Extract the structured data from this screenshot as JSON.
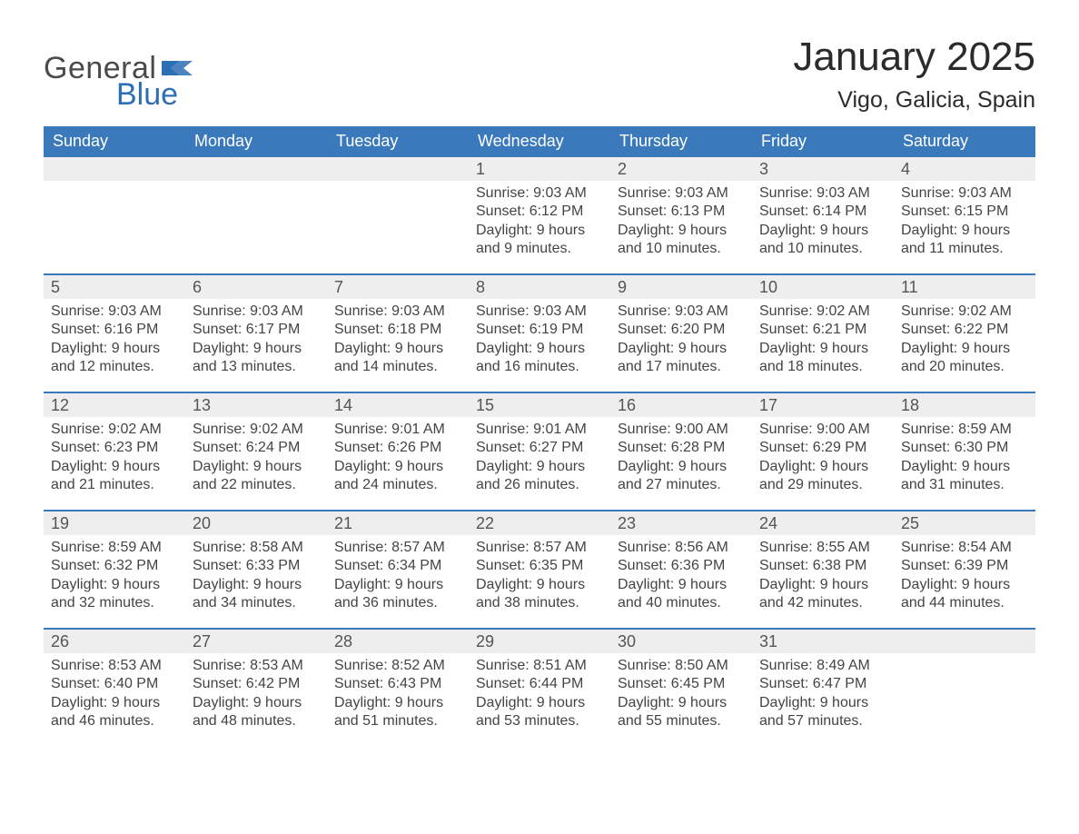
{
  "logo": {
    "general": "General",
    "blue": "Blue",
    "flag_color": "#2d6fb5",
    "text_gray": "#4a4a4a"
  },
  "title": {
    "month": "January 2025",
    "location": "Vigo, Galicia, Spain"
  },
  "colors": {
    "header_bg": "#3a79bb",
    "header_text": "#ffffff",
    "daynum_bg": "#eeeeee",
    "week_border": "#3a79bb",
    "body_text": "#444444",
    "page_bg": "#ffffff"
  },
  "calendar": {
    "columns": [
      "Sunday",
      "Monday",
      "Tuesday",
      "Wednesday",
      "Thursday",
      "Friday",
      "Saturday"
    ],
    "weeks": [
      [
        null,
        null,
        null,
        {
          "day": "1",
          "sunrise": "Sunrise: 9:03 AM",
          "sunset": "Sunset: 6:12 PM",
          "daylight1": "Daylight: 9 hours",
          "daylight2": "and 9 minutes."
        },
        {
          "day": "2",
          "sunrise": "Sunrise: 9:03 AM",
          "sunset": "Sunset: 6:13 PM",
          "daylight1": "Daylight: 9 hours",
          "daylight2": "and 10 minutes."
        },
        {
          "day": "3",
          "sunrise": "Sunrise: 9:03 AM",
          "sunset": "Sunset: 6:14 PM",
          "daylight1": "Daylight: 9 hours",
          "daylight2": "and 10 minutes."
        },
        {
          "day": "4",
          "sunrise": "Sunrise: 9:03 AM",
          "sunset": "Sunset: 6:15 PM",
          "daylight1": "Daylight: 9 hours",
          "daylight2": "and 11 minutes."
        }
      ],
      [
        {
          "day": "5",
          "sunrise": "Sunrise: 9:03 AM",
          "sunset": "Sunset: 6:16 PM",
          "daylight1": "Daylight: 9 hours",
          "daylight2": "and 12 minutes."
        },
        {
          "day": "6",
          "sunrise": "Sunrise: 9:03 AM",
          "sunset": "Sunset: 6:17 PM",
          "daylight1": "Daylight: 9 hours",
          "daylight2": "and 13 minutes."
        },
        {
          "day": "7",
          "sunrise": "Sunrise: 9:03 AM",
          "sunset": "Sunset: 6:18 PM",
          "daylight1": "Daylight: 9 hours",
          "daylight2": "and 14 minutes."
        },
        {
          "day": "8",
          "sunrise": "Sunrise: 9:03 AM",
          "sunset": "Sunset: 6:19 PM",
          "daylight1": "Daylight: 9 hours",
          "daylight2": "and 16 minutes."
        },
        {
          "day": "9",
          "sunrise": "Sunrise: 9:03 AM",
          "sunset": "Sunset: 6:20 PM",
          "daylight1": "Daylight: 9 hours",
          "daylight2": "and 17 minutes."
        },
        {
          "day": "10",
          "sunrise": "Sunrise: 9:02 AM",
          "sunset": "Sunset: 6:21 PM",
          "daylight1": "Daylight: 9 hours",
          "daylight2": "and 18 minutes."
        },
        {
          "day": "11",
          "sunrise": "Sunrise: 9:02 AM",
          "sunset": "Sunset: 6:22 PM",
          "daylight1": "Daylight: 9 hours",
          "daylight2": "and 20 minutes."
        }
      ],
      [
        {
          "day": "12",
          "sunrise": "Sunrise: 9:02 AM",
          "sunset": "Sunset: 6:23 PM",
          "daylight1": "Daylight: 9 hours",
          "daylight2": "and 21 minutes."
        },
        {
          "day": "13",
          "sunrise": "Sunrise: 9:02 AM",
          "sunset": "Sunset: 6:24 PM",
          "daylight1": "Daylight: 9 hours",
          "daylight2": "and 22 minutes."
        },
        {
          "day": "14",
          "sunrise": "Sunrise: 9:01 AM",
          "sunset": "Sunset: 6:26 PM",
          "daylight1": "Daylight: 9 hours",
          "daylight2": "and 24 minutes."
        },
        {
          "day": "15",
          "sunrise": "Sunrise: 9:01 AM",
          "sunset": "Sunset: 6:27 PM",
          "daylight1": "Daylight: 9 hours",
          "daylight2": "and 26 minutes."
        },
        {
          "day": "16",
          "sunrise": "Sunrise: 9:00 AM",
          "sunset": "Sunset: 6:28 PM",
          "daylight1": "Daylight: 9 hours",
          "daylight2": "and 27 minutes."
        },
        {
          "day": "17",
          "sunrise": "Sunrise: 9:00 AM",
          "sunset": "Sunset: 6:29 PM",
          "daylight1": "Daylight: 9 hours",
          "daylight2": "and 29 minutes."
        },
        {
          "day": "18",
          "sunrise": "Sunrise: 8:59 AM",
          "sunset": "Sunset: 6:30 PM",
          "daylight1": "Daylight: 9 hours",
          "daylight2": "and 31 minutes."
        }
      ],
      [
        {
          "day": "19",
          "sunrise": "Sunrise: 8:59 AM",
          "sunset": "Sunset: 6:32 PM",
          "daylight1": "Daylight: 9 hours",
          "daylight2": "and 32 minutes."
        },
        {
          "day": "20",
          "sunrise": "Sunrise: 8:58 AM",
          "sunset": "Sunset: 6:33 PM",
          "daylight1": "Daylight: 9 hours",
          "daylight2": "and 34 minutes."
        },
        {
          "day": "21",
          "sunrise": "Sunrise: 8:57 AM",
          "sunset": "Sunset: 6:34 PM",
          "daylight1": "Daylight: 9 hours",
          "daylight2": "and 36 minutes."
        },
        {
          "day": "22",
          "sunrise": "Sunrise: 8:57 AM",
          "sunset": "Sunset: 6:35 PM",
          "daylight1": "Daylight: 9 hours",
          "daylight2": "and 38 minutes."
        },
        {
          "day": "23",
          "sunrise": "Sunrise: 8:56 AM",
          "sunset": "Sunset: 6:36 PM",
          "daylight1": "Daylight: 9 hours",
          "daylight2": "and 40 minutes."
        },
        {
          "day": "24",
          "sunrise": "Sunrise: 8:55 AM",
          "sunset": "Sunset: 6:38 PM",
          "daylight1": "Daylight: 9 hours",
          "daylight2": "and 42 minutes."
        },
        {
          "day": "25",
          "sunrise": "Sunrise: 8:54 AM",
          "sunset": "Sunset: 6:39 PM",
          "daylight1": "Daylight: 9 hours",
          "daylight2": "and 44 minutes."
        }
      ],
      [
        {
          "day": "26",
          "sunrise": "Sunrise: 8:53 AM",
          "sunset": "Sunset: 6:40 PM",
          "daylight1": "Daylight: 9 hours",
          "daylight2": "and 46 minutes."
        },
        {
          "day": "27",
          "sunrise": "Sunrise: 8:53 AM",
          "sunset": "Sunset: 6:42 PM",
          "daylight1": "Daylight: 9 hours",
          "daylight2": "and 48 minutes."
        },
        {
          "day": "28",
          "sunrise": "Sunrise: 8:52 AM",
          "sunset": "Sunset: 6:43 PM",
          "daylight1": "Daylight: 9 hours",
          "daylight2": "and 51 minutes."
        },
        {
          "day": "29",
          "sunrise": "Sunrise: 8:51 AM",
          "sunset": "Sunset: 6:44 PM",
          "daylight1": "Daylight: 9 hours",
          "daylight2": "and 53 minutes."
        },
        {
          "day": "30",
          "sunrise": "Sunrise: 8:50 AM",
          "sunset": "Sunset: 6:45 PM",
          "daylight1": "Daylight: 9 hours",
          "daylight2": "and 55 minutes."
        },
        {
          "day": "31",
          "sunrise": "Sunrise: 8:49 AM",
          "sunset": "Sunset: 6:47 PM",
          "daylight1": "Daylight: 9 hours",
          "daylight2": "and 57 minutes."
        },
        null
      ]
    ]
  }
}
